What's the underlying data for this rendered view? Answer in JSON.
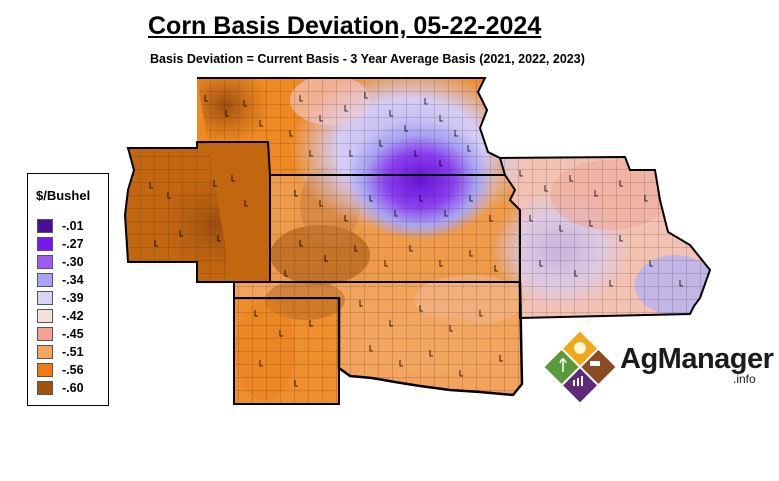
{
  "title": "Corn Basis Deviation, 05-22-2024",
  "subtitle": "Basis Deviation = Current Basis - 3 Year Average Basis (2021, 2022, 2023)",
  "legend": {
    "title": "$/Bushel",
    "items": [
      {
        "label": "-.01",
        "color": "#4b0f96"
      },
      {
        "label": "-.27",
        "color": "#7a17f0"
      },
      {
        "label": "-.30",
        "color": "#9e5cf0"
      },
      {
        "label": "-.34",
        "color": "#a7a2f3"
      },
      {
        "label": "-.39",
        "color": "#ddd2f6"
      },
      {
        "label": "-.42",
        "color": "#f6e1d8"
      },
      {
        "label": "-.45",
        "color": "#f2a293"
      },
      {
        "label": "-.51",
        "color": "#f4a55a"
      },
      {
        "label": "-.56",
        "color": "#ef7b12"
      },
      {
        "label": "-.60",
        "color": "#a0520f"
      }
    ]
  },
  "logo": {
    "name": "AgManager",
    "suffix": ".info"
  }
}
